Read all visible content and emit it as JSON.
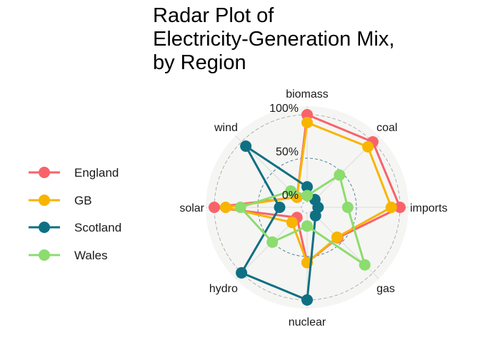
{
  "title_lines": [
    "Radar Plot of",
    "Electricity-Generation Mix,",
    "by Region"
  ],
  "chart_data": {
    "type": "radar",
    "title": "Radar Plot of Electricity-Generation Mix, by Region",
    "axes": [
      "biomass",
      "coal",
      "imports",
      "gas",
      "nuclear",
      "hydro",
      "solar",
      "wind"
    ],
    "radial_ticks": [
      {
        "value": 0,
        "label": "0%"
      },
      {
        "value": 50,
        "label": "50%"
      },
      {
        "value": 100,
        "label": "100%"
      }
    ],
    "rlim": [
      0,
      100
    ],
    "legend_position": "left",
    "series": [
      {
        "name": "England",
        "color": "#f8636b",
        "values": [
          100,
          100,
          100,
          43,
          57,
          10,
          100,
          10
        ]
      },
      {
        "name": "GB",
        "color": "#f7b500",
        "values": [
          91,
          92,
          90,
          42,
          57,
          18,
          87,
          10
        ]
      },
      {
        "name": "Scotland",
        "color": "#0f7083",
        "values": [
          17,
          6,
          6,
          7,
          100,
          100,
          25,
          93
        ]
      },
      {
        "name": "Wales",
        "color": "#8cdc6f",
        "values": [
          7,
          46,
          40,
          87,
          15,
          50,
          70,
          20
        ]
      }
    ]
  }
}
